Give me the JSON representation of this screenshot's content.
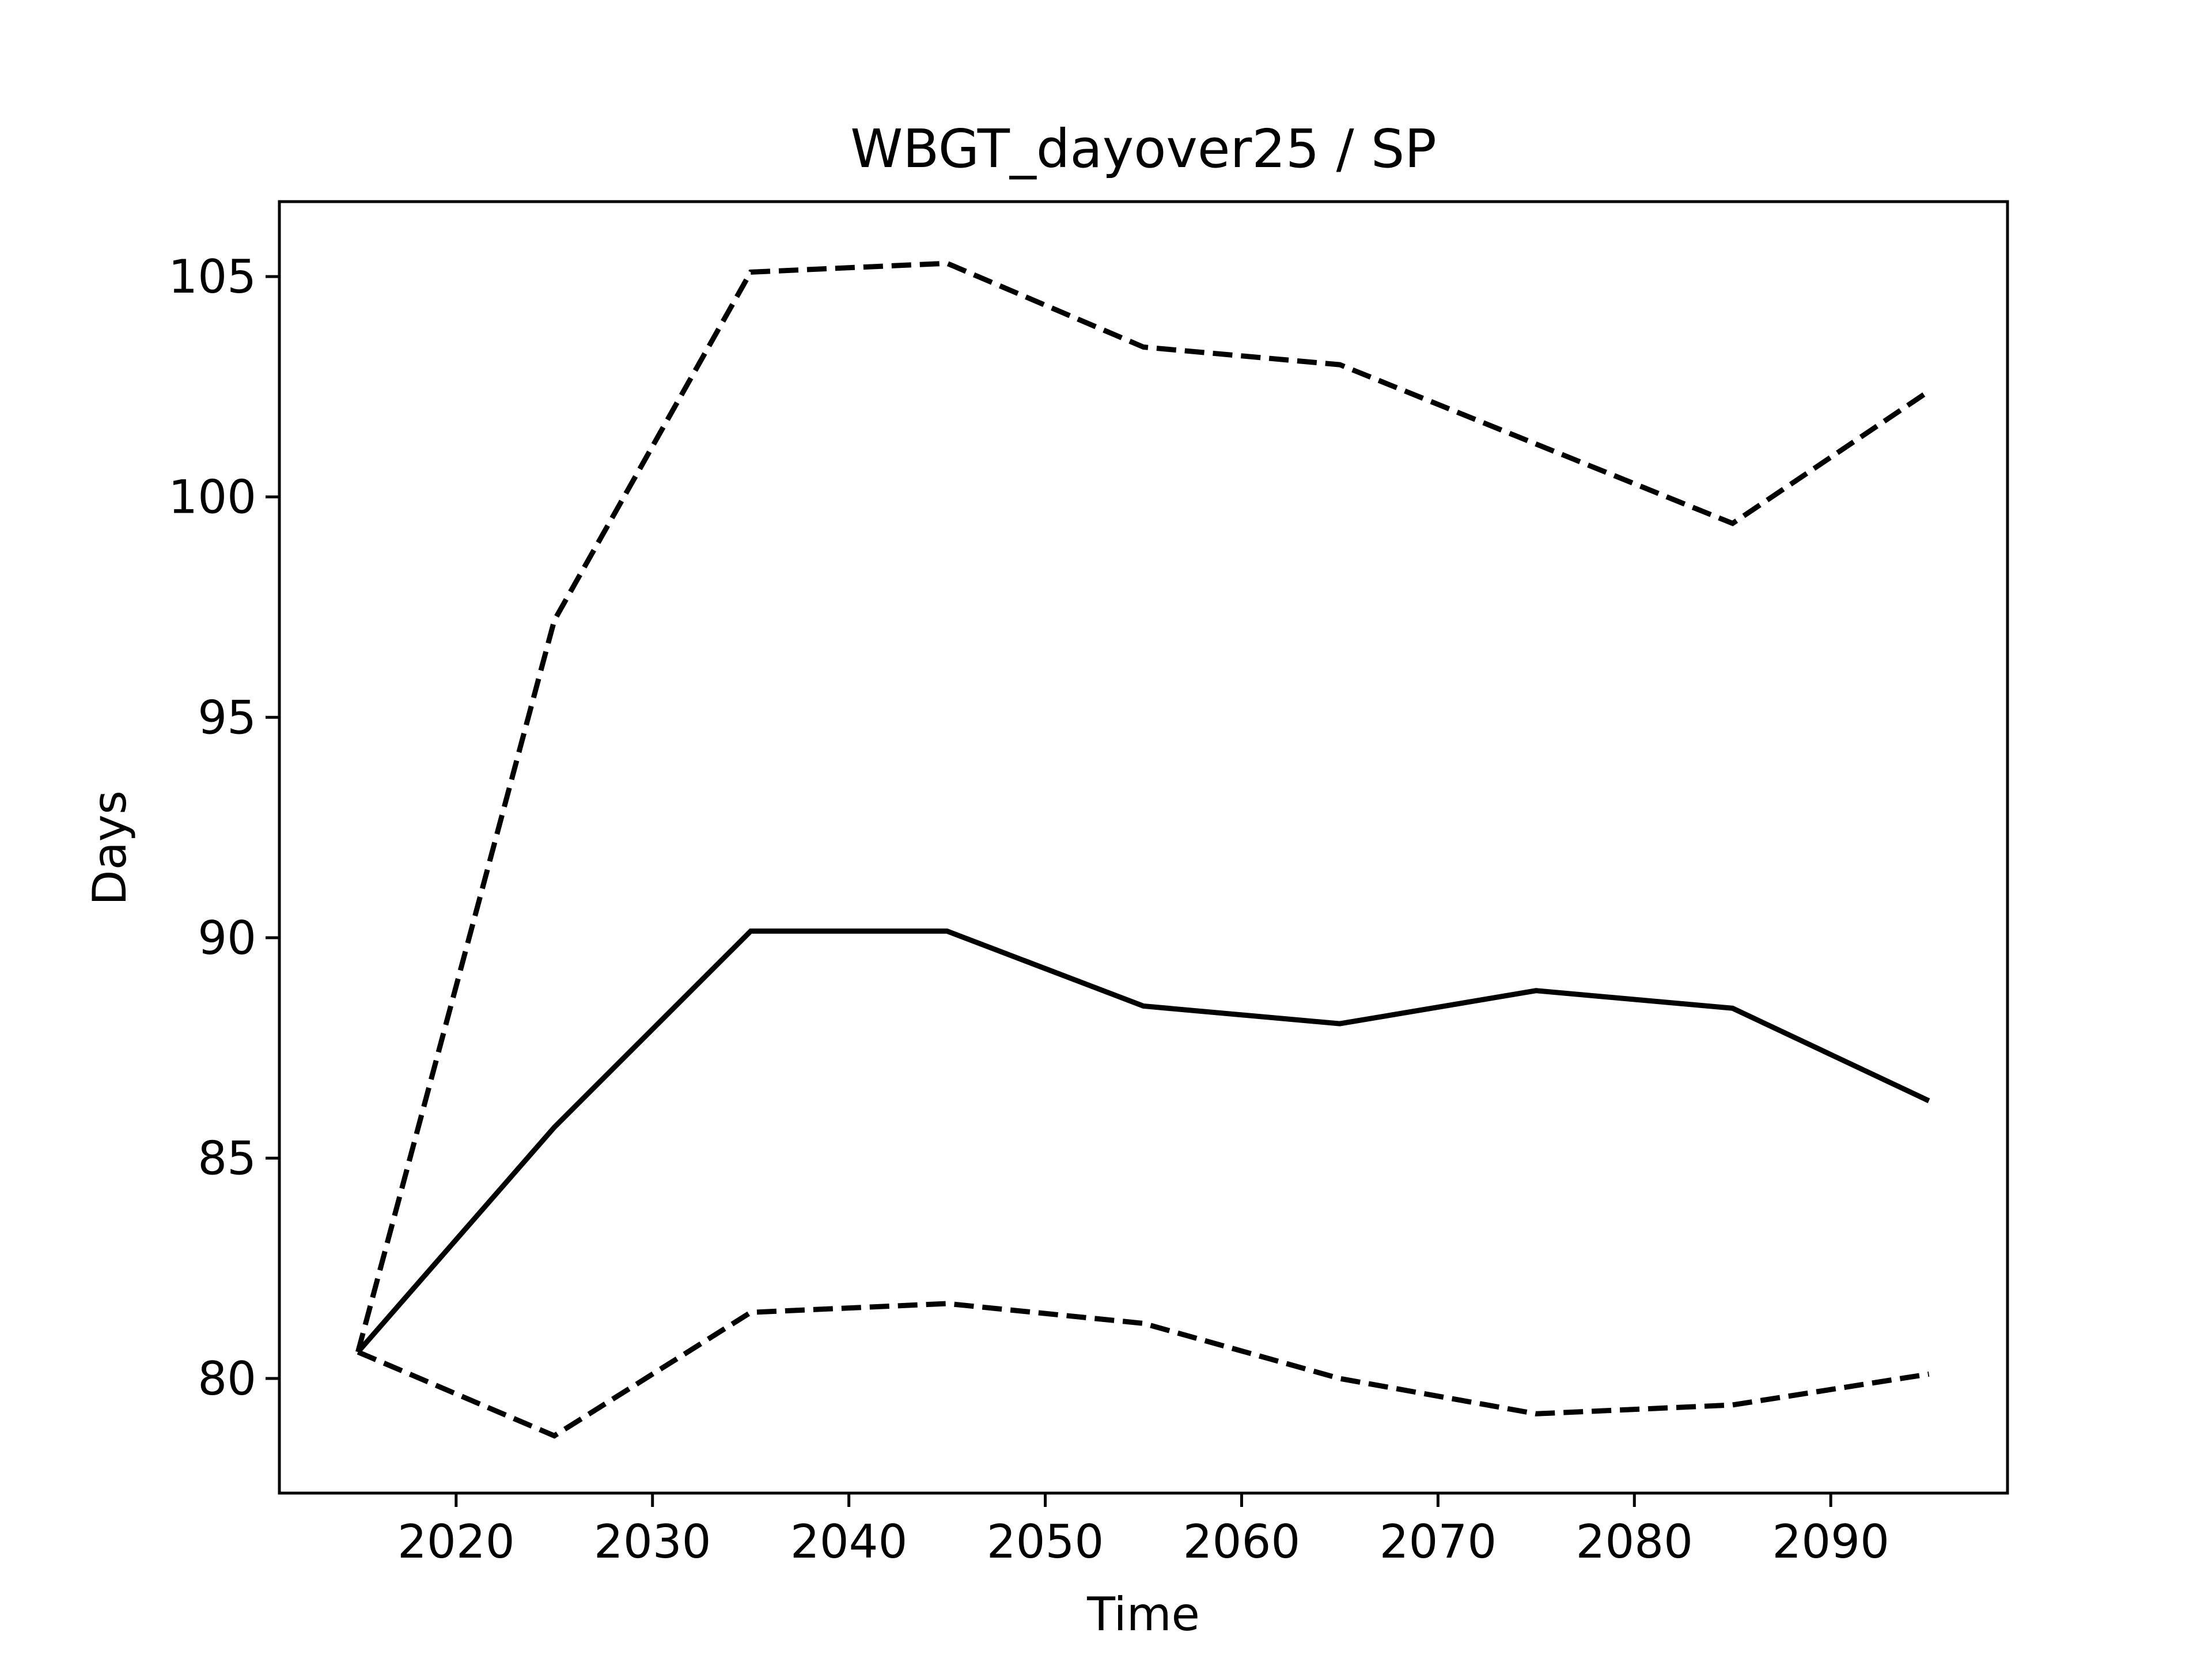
{
  "chart_data": {
    "type": "line",
    "title": "WBGT_dayover25 / SP",
    "xlabel": "Time",
    "ylabel": "Days",
    "xlim": [
      2011,
      2099
    ],
    "ylim": [
      77.4,
      106.7
    ],
    "xticks": [
      2020,
      2030,
      2040,
      2050,
      2060,
      2070,
      2080,
      2090
    ],
    "yticks": [
      80,
      85,
      90,
      95,
      100,
      105
    ],
    "grid": false,
    "x": [
      2015,
      2025,
      2035,
      2045,
      2055,
      2065,
      2075,
      2085,
      2095
    ],
    "series": [
      {
        "style": "dashed",
        "values": [
          80.6,
          97.2,
          105.1,
          105.3,
          103.4,
          103.0,
          101.2,
          99.4,
          102.4
        ]
      },
      {
        "style": "solid",
        "values": [
          80.6,
          85.7,
          90.15,
          90.15,
          88.45,
          88.05,
          88.8,
          88.4,
          86.3
        ]
      },
      {
        "style": "dashed",
        "values": [
          80.6,
          78.7,
          81.5,
          81.7,
          81.25,
          80.0,
          79.2,
          79.4,
          80.1
        ]
      }
    ],
    "colors": {
      "line": "#000000",
      "axes": "#000000",
      "background": "#ffffff"
    }
  }
}
